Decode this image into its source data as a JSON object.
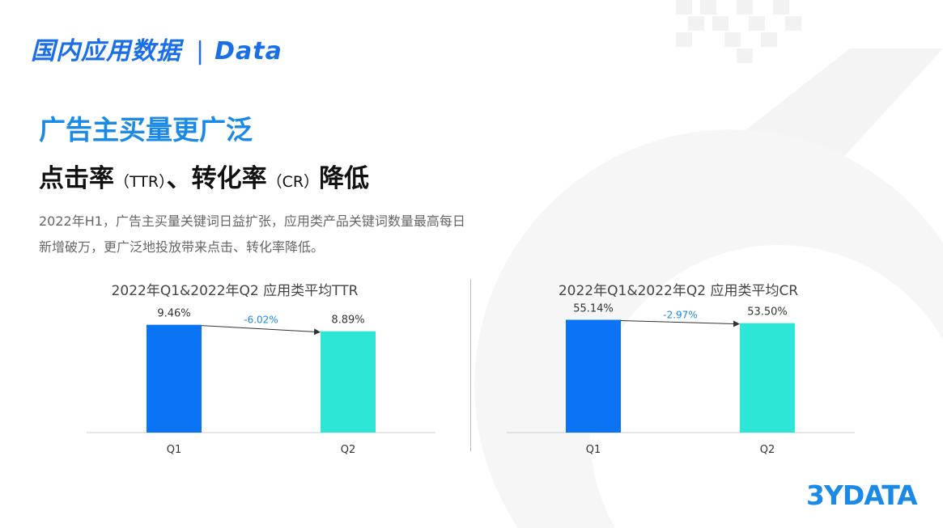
{
  "header": {
    "title": "国内应用数据",
    "separator": "|",
    "suffix": "Data"
  },
  "subtitle": "广告主买量更广泛",
  "main_title": {
    "part1": "点击率",
    "abbr1": "（TTR）",
    "sep": "、",
    "part2": "转化率",
    "abbr2": "（CR）",
    "part3": "降低"
  },
  "description": "2022年H1，广告主买量关键词日益扩张，应用类产品关键词数量最高每日新增破万，更广泛地投放带来点击、转化率降低。",
  "logo_text": "3YDATA",
  "colors": {
    "q1": "#0a74f5",
    "q2": "#2de6d6",
    "accent": "#1a8ae6",
    "change": "#1a8ae6"
  },
  "chart_data": [
    {
      "type": "bar",
      "title": "2022年Q1&2022年Q2 应用类平均TTR",
      "categories": [
        "Q1",
        "Q2"
      ],
      "values": [
        9.46,
        8.89
      ],
      "value_labels": [
        "9.46%",
        "8.89%"
      ],
      "change_label": "-6.02%",
      "ylim": [
        0,
        10.5
      ],
      "grid": false
    },
    {
      "type": "bar",
      "title": "2022年Q1&2022年Q2 应用类平均CR",
      "categories": [
        "Q1",
        "Q2"
      ],
      "values": [
        55.14,
        53.5
      ],
      "value_labels": [
        "55.14%",
        "53.50%"
      ],
      "change_label": "-2.97%",
      "ylim": [
        0,
        58.5
      ],
      "grid": false
    }
  ]
}
